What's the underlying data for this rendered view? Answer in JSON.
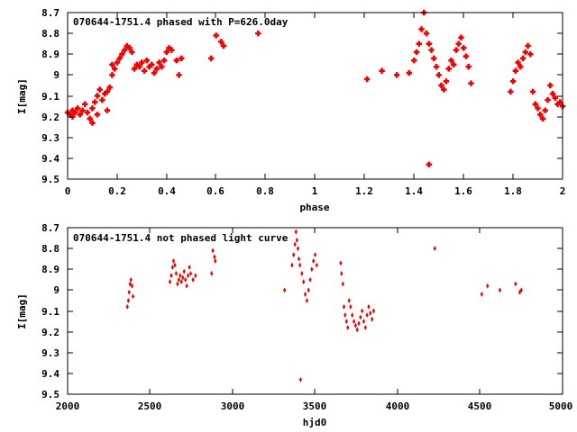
{
  "chart_data": [
    {
      "type": "scatter",
      "title": "070644-1751.4 phased with P=626.0day",
      "xlabel": "phase",
      "ylabel": "I[mag]",
      "xlim": [
        0,
        2
      ],
      "ylim": [
        8.7,
        9.5
      ],
      "y_inverted": true,
      "grid": false,
      "marker": "cross",
      "color": "#ee0000",
      "x_ticks": [
        "0",
        "0.2",
        "0.4",
        "0.6",
        "0.8",
        "1",
        "1.2",
        "1.4",
        "1.6",
        "1.8",
        "2"
      ],
      "y_ticks": [
        "8.7",
        "8.8",
        "8.9",
        "9",
        "9.1",
        "9.2",
        "9.3",
        "9.4",
        "9.5"
      ],
      "points": [
        [
          0.0,
          9.18
        ],
        [
          0.01,
          9.19
        ],
        [
          0.02,
          9.17
        ],
        [
          0.02,
          9.2
        ],
        [
          0.03,
          9.18
        ],
        [
          0.04,
          9.16
        ],
        [
          0.05,
          9.19
        ],
        [
          0.06,
          9.17
        ],
        [
          0.07,
          9.14
        ],
        [
          0.08,
          9.18
        ],
        [
          0.09,
          9.21
        ],
        [
          0.1,
          9.23
        ],
        [
          0.1,
          9.16
        ],
        [
          0.11,
          9.13
        ],
        [
          0.12,
          9.19
        ],
        [
          0.12,
          9.1
        ],
        [
          0.13,
          9.07
        ],
        [
          0.14,
          9.12
        ],
        [
          0.15,
          9.09
        ],
        [
          0.16,
          9.08
        ],
        [
          0.16,
          9.17
        ],
        [
          0.17,
          9.06
        ],
        [
          0.18,
          9.0
        ],
        [
          0.18,
          8.95
        ],
        [
          0.19,
          8.97
        ],
        [
          0.2,
          8.94
        ],
        [
          0.21,
          8.92
        ],
        [
          0.22,
          8.9
        ],
        [
          0.23,
          8.88
        ],
        [
          0.24,
          8.86
        ],
        [
          0.25,
          8.87
        ],
        [
          0.26,
          8.89
        ],
        [
          0.27,
          8.97
        ],
        [
          0.28,
          8.95
        ],
        [
          0.29,
          8.96
        ],
        [
          0.3,
          8.94
        ],
        [
          0.31,
          8.98
        ],
        [
          0.32,
          8.93
        ],
        [
          0.33,
          8.96
        ],
        [
          0.34,
          8.95
        ],
        [
          0.35,
          8.99
        ],
        [
          0.36,
          8.97
        ],
        [
          0.37,
          8.94
        ],
        [
          0.38,
          8.96
        ],
        [
          0.39,
          8.93
        ],
        [
          0.4,
          8.89
        ],
        [
          0.41,
          8.87
        ],
        [
          0.42,
          8.88
        ],
        [
          0.44,
          8.93
        ],
        [
          0.45,
          9.0
        ],
        [
          0.46,
          8.92
        ],
        [
          0.58,
          8.92
        ],
        [
          0.6,
          8.81
        ],
        [
          0.62,
          8.84
        ],
        [
          0.63,
          8.86
        ],
        [
          0.77,
          8.8
        ],
        [
          1.21,
          9.02
        ],
        [
          1.27,
          8.98
        ],
        [
          1.33,
          9.0
        ],
        [
          1.38,
          8.99
        ],
        [
          1.4,
          8.93
        ],
        [
          1.41,
          8.89
        ],
        [
          1.42,
          8.85
        ],
        [
          1.43,
          8.78
        ],
        [
          1.44,
          8.7
        ],
        [
          1.45,
          8.8
        ],
        [
          1.46,
          8.85
        ],
        [
          1.46,
          9.43
        ],
        [
          1.47,
          8.88
        ],
        [
          1.48,
          8.92
        ],
        [
          1.49,
          8.96
        ],
        [
          1.5,
          9.0
        ],
        [
          1.51,
          9.05
        ],
        [
          1.52,
          9.07
        ],
        [
          1.53,
          9.03
        ],
        [
          1.54,
          8.97
        ],
        [
          1.55,
          8.93
        ],
        [
          1.56,
          8.95
        ],
        [
          1.57,
          8.88
        ],
        [
          1.58,
          8.85
        ],
        [
          1.59,
          8.82
        ],
        [
          1.6,
          8.87
        ],
        [
          1.61,
          8.91
        ],
        [
          1.62,
          8.96
        ],
        [
          1.63,
          9.04
        ],
        [
          1.79,
          9.08
        ],
        [
          1.8,
          9.03
        ],
        [
          1.81,
          8.98
        ],
        [
          1.82,
          8.94
        ],
        [
          1.83,
          8.96
        ],
        [
          1.84,
          8.92
        ],
        [
          1.85,
          8.89
        ],
        [
          1.86,
          8.86
        ],
        [
          1.87,
          8.9
        ],
        [
          1.88,
          9.08
        ],
        [
          1.89,
          9.14
        ],
        [
          1.9,
          9.16
        ],
        [
          1.91,
          9.19
        ],
        [
          1.92,
          9.21
        ],
        [
          1.93,
          9.17
        ],
        [
          1.94,
          9.12
        ],
        [
          1.95,
          9.05
        ],
        [
          1.96,
          9.09
        ],
        [
          1.97,
          9.11
        ],
        [
          1.98,
          9.14
        ],
        [
          1.99,
          9.13
        ],
        [
          2.0,
          9.15
        ]
      ]
    },
    {
      "type": "scatter",
      "title": "070644-1751.4 not phased light curve",
      "xlabel": "hjd0",
      "ylabel": "I[mag]",
      "xlim": [
        2000,
        5000
      ],
      "ylim": [
        8.7,
        9.5
      ],
      "y_inverted": true,
      "grid": false,
      "marker": "diamond",
      "color": "#ee0000",
      "x_ticks": [
        "2000",
        "2500",
        "3000",
        "3500",
        "4000",
        "4500",
        "5000"
      ],
      "y_ticks": [
        "8.7",
        "8.8",
        "8.9",
        "9",
        "9.1",
        "9.2",
        "9.3",
        "9.4",
        "9.5"
      ],
      "points": [
        [
          2362,
          9.08
        ],
        [
          2368,
          9.05
        ],
        [
          2373,
          9.01
        ],
        [
          2378,
          8.97
        ],
        [
          2384,
          8.95
        ],
        [
          2390,
          8.98
        ],
        [
          2396,
          9.03
        ],
        [
          2620,
          8.96
        ],
        [
          2628,
          8.93
        ],
        [
          2636,
          8.89
        ],
        [
          2642,
          8.86
        ],
        [
          2650,
          8.88
        ],
        [
          2658,
          8.92
        ],
        [
          2666,
          8.97
        ],
        [
          2674,
          8.95
        ],
        [
          2682,
          8.93
        ],
        [
          2690,
          8.96
        ],
        [
          2698,
          8.94
        ],
        [
          2706,
          8.91
        ],
        [
          2714,
          8.95
        ],
        [
          2722,
          8.98
        ],
        [
          2730,
          8.93
        ],
        [
          2738,
          8.89
        ],
        [
          2746,
          8.92
        ],
        [
          2760,
          8.95
        ],
        [
          2775,
          8.93
        ],
        [
          2873,
          8.92
        ],
        [
          2880,
          8.81
        ],
        [
          2890,
          8.84
        ],
        [
          2895,
          8.86
        ],
        [
          3315,
          9.0
        ],
        [
          3360,
          8.88
        ],
        [
          3370,
          8.83
        ],
        [
          3378,
          8.78
        ],
        [
          3384,
          8.72
        ],
        [
          3390,
          8.76
        ],
        [
          3396,
          8.8
        ],
        [
          3402,
          8.85
        ],
        [
          3408,
          8.88
        ],
        [
          3412,
          9.43
        ],
        [
          3420,
          8.92
        ],
        [
          3430,
          8.96
        ],
        [
          3440,
          9.02
        ],
        [
          3450,
          9.05
        ],
        [
          3460,
          9.0
        ],
        [
          3470,
          8.95
        ],
        [
          3480,
          8.9
        ],
        [
          3490,
          8.86
        ],
        [
          3500,
          8.83
        ],
        [
          3510,
          8.88
        ],
        [
          3655,
          8.87
        ],
        [
          3660,
          8.92
        ],
        [
          3668,
          8.97
        ],
        [
          3675,
          9.08
        ],
        [
          3682,
          9.12
        ],
        [
          3690,
          9.15
        ],
        [
          3698,
          9.18
        ],
        [
          3706,
          9.05
        ],
        [
          3715,
          9.08
        ],
        [
          3725,
          9.12
        ],
        [
          3735,
          9.15
        ],
        [
          3745,
          9.17
        ],
        [
          3755,
          9.19
        ],
        [
          3765,
          9.16
        ],
        [
          3775,
          9.13
        ],
        [
          3785,
          9.1
        ],
        [
          3795,
          9.15
        ],
        [
          3805,
          9.18
        ],
        [
          3815,
          9.12
        ],
        [
          3825,
          9.08
        ],
        [
          3835,
          9.11
        ],
        [
          3845,
          9.14
        ],
        [
          3855,
          9.1
        ],
        [
          4225,
          8.8
        ],
        [
          4510,
          9.02
        ],
        [
          4545,
          8.98
        ],
        [
          4620,
          9.0
        ],
        [
          4715,
          8.97
        ],
        [
          4740,
          9.01
        ],
        [
          4750,
          9.0
        ]
      ]
    }
  ]
}
